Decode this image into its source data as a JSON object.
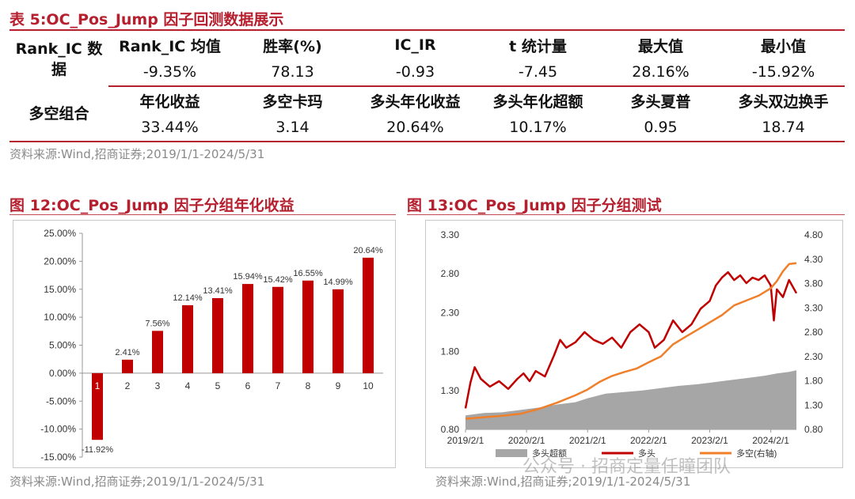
{
  "table": {
    "title": "表 5:OC_Pos_Jump 因子回测数据展示",
    "rank_ic": {
      "label": "Rank_IC 数据",
      "headers": [
        "Rank_IC 均值",
        "胜率(%)",
        "IC_IR",
        "t 统计量",
        "最大值",
        "最小值"
      ],
      "values": [
        "-9.35%",
        "78.13",
        "-0.93",
        "-7.45",
        "28.16%",
        "-15.92%"
      ]
    },
    "long_short": {
      "label": "多空组合",
      "headers": [
        "年化收益",
        "多空卡玛",
        "多头年化收益",
        "多头年化超额",
        "多头夏普",
        "多头双边换手"
      ],
      "values": [
        "33.44%",
        "3.14",
        "20.64%",
        "10.17%",
        "0.95",
        "18.74"
      ]
    },
    "source": "资料来源:Wind,招商证券;2019/1/1-2024/5/31"
  },
  "fig12": {
    "title": "图 12:OC_Pos_Jump 因子分组年化收益",
    "source": "资料来源:Wind,招商证券;2019/1/1-2024/5/31",
    "chart_data": {
      "type": "bar",
      "categories": [
        "1",
        "2",
        "3",
        "4",
        "5",
        "6",
        "7",
        "8",
        "9",
        "10"
      ],
      "values": [
        -11.92,
        2.41,
        7.56,
        12.14,
        13.41,
        15.94,
        15.42,
        16.55,
        14.99,
        20.64
      ],
      "labels": [
        "-11.92%",
        "2.41%",
        "7.56%",
        "12.14%",
        "13.41%",
        "15.94%",
        "15.42%",
        "16.55%",
        "14.99%",
        "20.64%"
      ],
      "yticks": [
        "25.00%",
        "20.00%",
        "15.00%",
        "10.00%",
        "5.00%",
        "0.00%",
        "-5.00%",
        "-10.00%",
        "-15.00%"
      ],
      "ylim": [
        -15,
        25
      ],
      "bar_color": "#c00000"
    }
  },
  "fig13": {
    "title": "图 13:OC_Pos_Jump 因子分组测试",
    "source": "资料来源:Wind,招商证券;2019/1/1-2024/5/31",
    "chart_data": {
      "type": "line",
      "x_ticks": [
        "2019/2/1",
        "2020/2/1",
        "2021/2/1",
        "2022/2/1",
        "2023/2/1",
        "2024/2/1"
      ],
      "x_range": [
        2019.0,
        2024.42
      ],
      "y_left_ticks": [
        "3.30",
        "2.80",
        "2.30",
        "1.80",
        "1.30",
        "0.80"
      ],
      "y_left_range": [
        0.8,
        3.3
      ],
      "y_right_ticks": [
        "4.80",
        "4.30",
        "3.80",
        "3.30",
        "2.80",
        "2.30",
        "1.80",
        "1.30",
        "0.80"
      ],
      "y_right_range": [
        0.8,
        4.8
      ],
      "series": [
        {
          "name": "多头超额",
          "kind": "area",
          "axis": "left",
          "color": "#a6a6a6",
          "points": [
            [
              2019.0,
              0.98
            ],
            [
              2019.3,
              1.01
            ],
            [
              2019.6,
              1.02
            ],
            [
              2019.9,
              1.05
            ],
            [
              2020.2,
              1.08
            ],
            [
              2020.5,
              1.12
            ],
            [
              2020.8,
              1.15
            ],
            [
              2021.0,
              1.2
            ],
            [
              2021.3,
              1.26
            ],
            [
              2021.6,
              1.28
            ],
            [
              2021.9,
              1.3
            ],
            [
              2022.2,
              1.33
            ],
            [
              2022.5,
              1.36
            ],
            [
              2022.8,
              1.38
            ],
            [
              2023.0,
              1.4
            ],
            [
              2023.3,
              1.43
            ],
            [
              2023.6,
              1.46
            ],
            [
              2023.9,
              1.49
            ],
            [
              2024.1,
              1.52
            ],
            [
              2024.3,
              1.54
            ],
            [
              2024.42,
              1.56
            ]
          ]
        },
        {
          "name": "多头",
          "kind": "line",
          "axis": "left",
          "color": "#c00000",
          "points": [
            [
              2019.0,
              1.07
            ],
            [
              2019.08,
              1.4
            ],
            [
              2019.15,
              1.6
            ],
            [
              2019.25,
              1.45
            ],
            [
              2019.4,
              1.35
            ],
            [
              2019.55,
              1.42
            ],
            [
              2019.7,
              1.32
            ],
            [
              2019.85,
              1.45
            ],
            [
              2019.95,
              1.52
            ],
            [
              2020.05,
              1.42
            ],
            [
              2020.15,
              1.55
            ],
            [
              2020.3,
              1.48
            ],
            [
              2020.45,
              1.75
            ],
            [
              2020.55,
              1.95
            ],
            [
              2020.65,
              1.85
            ],
            [
              2020.8,
              1.92
            ],
            [
              2020.95,
              2.05
            ],
            [
              2021.1,
              1.95
            ],
            [
              2021.25,
              1.9
            ],
            [
              2021.4,
              1.98
            ],
            [
              2021.55,
              1.85
            ],
            [
              2021.7,
              2.05
            ],
            [
              2021.85,
              2.15
            ],
            [
              2022.0,
              2.05
            ],
            [
              2022.1,
              1.85
            ],
            [
              2022.25,
              1.95
            ],
            [
              2022.4,
              2.2
            ],
            [
              2022.55,
              2.05
            ],
            [
              2022.7,
              2.15
            ],
            [
              2022.85,
              2.35
            ],
            [
              2023.0,
              2.45
            ],
            [
              2023.1,
              2.65
            ],
            [
              2023.2,
              2.75
            ],
            [
              2023.3,
              2.82
            ],
            [
              2023.4,
              2.72
            ],
            [
              2023.5,
              2.78
            ],
            [
              2023.6,
              2.68
            ],
            [
              2023.7,
              2.75
            ],
            [
              2023.8,
              2.72
            ],
            [
              2023.9,
              2.78
            ],
            [
              2024.0,
              2.65
            ],
            [
              2024.05,
              2.2
            ],
            [
              2024.1,
              2.6
            ],
            [
              2024.2,
              2.5
            ],
            [
              2024.3,
              2.72
            ],
            [
              2024.42,
              2.55
            ]
          ]
        },
        {
          "name": "多空(右轴)",
          "kind": "line",
          "axis": "right",
          "color": "#f07f2a",
          "points": [
            [
              2019.0,
              1.02
            ],
            [
              2019.3,
              1.05
            ],
            [
              2019.6,
              1.08
            ],
            [
              2019.9,
              1.12
            ],
            [
              2020.2,
              1.22
            ],
            [
              2020.5,
              1.35
            ],
            [
              2020.8,
              1.5
            ],
            [
              2021.0,
              1.62
            ],
            [
              2021.2,
              1.78
            ],
            [
              2021.4,
              1.9
            ],
            [
              2021.6,
              1.98
            ],
            [
              2021.8,
              2.05
            ],
            [
              2022.0,
              2.18
            ],
            [
              2022.2,
              2.3
            ],
            [
              2022.4,
              2.55
            ],
            [
              2022.6,
              2.7
            ],
            [
              2022.8,
              2.85
            ],
            [
              2023.0,
              3.0
            ],
            [
              2023.2,
              3.15
            ],
            [
              2023.4,
              3.35
            ],
            [
              2023.6,
              3.45
            ],
            [
              2023.8,
              3.55
            ],
            [
              2024.0,
              3.7
            ],
            [
              2024.1,
              3.85
            ],
            [
              2024.2,
              4.05
            ],
            [
              2024.3,
              4.2
            ],
            [
              2024.42,
              4.22
            ]
          ]
        }
      ],
      "legend": [
        "多头超额",
        "多头",
        "多空(右轴)"
      ]
    }
  },
  "watermark": "公众号 · 招商定量任瞳团队"
}
